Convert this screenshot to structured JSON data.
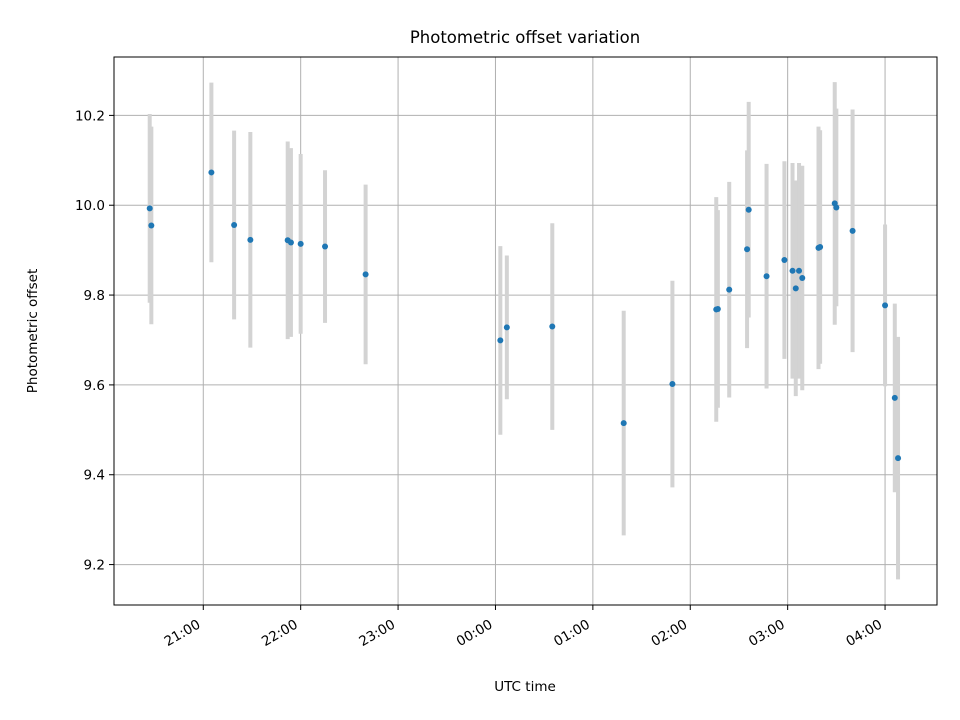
{
  "chart_data": {
    "type": "scatter",
    "title": "Photometric offset variation",
    "xlabel": "UTC time",
    "ylabel": "Photometric offset",
    "x_format": "HH:MM",
    "x_ticks": [
      "21:00",
      "22:00",
      "23:00",
      "00:00",
      "01:00",
      "02:00",
      "03:00",
      "04:00"
    ],
    "x_tick_dates": [
      "2000-01-01T21:00",
      "2000-01-01T22:00",
      "2000-01-01T23:00",
      "2000-01-02T00:00",
      "2000-01-02T01:00",
      "2000-01-02T02:00",
      "2000-01-02T03:00",
      "2000-01-02T04:00"
    ],
    "xlim": [
      "2000-01-01T20:05",
      "2000-01-02T04:32"
    ],
    "y_ticks": [
      "9.2",
      "9.4",
      "9.6",
      "9.8",
      "10.0",
      "10.2"
    ],
    "ylim": [
      9.11,
      10.33
    ],
    "grid": true,
    "marker_color": "#1f77b4",
    "errorbar_color": "#d3d3d3",
    "points": [
      {
        "t": "2000-01-01T20:27",
        "y": 9.993,
        "err": 0.21
      },
      {
        "t": "2000-01-01T20:28",
        "y": 9.955,
        "err": 0.22
      },
      {
        "t": "2000-01-01T21:05",
        "y": 10.073,
        "err": 0.2
      },
      {
        "t": "2000-01-01T21:19",
        "y": 9.956,
        "err": 0.21
      },
      {
        "t": "2000-01-01T21:29",
        "y": 9.923,
        "err": 0.24
      },
      {
        "t": "2000-01-01T21:52",
        "y": 9.922,
        "err": 0.22
      },
      {
        "t": "2000-01-01T21:54",
        "y": 9.917,
        "err": 0.21
      },
      {
        "t": "2000-01-01T22:00",
        "y": 9.914,
        "err": 0.2
      },
      {
        "t": "2000-01-01T22:15",
        "y": 9.908,
        "err": 0.17
      },
      {
        "t": "2000-01-01T22:40",
        "y": 9.846,
        "err": 0.2
      },
      {
        "t": "2000-01-02T00:03",
        "y": 9.699,
        "err": 0.21
      },
      {
        "t": "2000-01-02T00:07",
        "y": 9.728,
        "err": 0.16
      },
      {
        "t": "2000-01-02T00:35",
        "y": 9.73,
        "err": 0.23
      },
      {
        "t": "2000-01-02T01:19",
        "y": 9.515,
        "err": 0.25
      },
      {
        "t": "2000-01-02T01:49",
        "y": 9.602,
        "err": 0.23
      },
      {
        "t": "2000-01-02T02:16",
        "y": 9.768,
        "err": 0.25
      },
      {
        "t": "2000-01-02T02:17",
        "y": 9.769,
        "err": 0.22
      },
      {
        "t": "2000-01-02T02:24",
        "y": 9.812,
        "err": 0.24
      },
      {
        "t": "2000-01-02T02:35",
        "y": 9.902,
        "err": 0.22
      },
      {
        "t": "2000-01-02T02:36",
        "y": 9.99,
        "err": 0.24
      },
      {
        "t": "2000-01-02T02:47",
        "y": 9.842,
        "err": 0.25
      },
      {
        "t": "2000-01-02T02:58",
        "y": 9.878,
        "err": 0.22
      },
      {
        "t": "2000-01-02T03:03",
        "y": 9.854,
        "err": 0.24
      },
      {
        "t": "2000-01-02T03:05",
        "y": 9.815,
        "err": 0.24
      },
      {
        "t": "2000-01-02T03:07",
        "y": 9.854,
        "err": 0.24
      },
      {
        "t": "2000-01-02T03:09",
        "y": 9.838,
        "err": 0.25
      },
      {
        "t": "2000-01-02T03:19",
        "y": 9.905,
        "err": 0.27
      },
      {
        "t": "2000-01-02T03:20",
        "y": 9.907,
        "err": 0.26
      },
      {
        "t": "2000-01-02T03:29",
        "y": 10.004,
        "err": 0.27
      },
      {
        "t": "2000-01-02T03:30",
        "y": 9.995,
        "err": 0.22
      },
      {
        "t": "2000-01-02T03:40",
        "y": 9.943,
        "err": 0.27
      },
      {
        "t": "2000-01-02T04:00",
        "y": 9.777,
        "err": 0.18
      },
      {
        "t": "2000-01-02T04:06",
        "y": 9.571,
        "err": 0.21
      },
      {
        "t": "2000-01-02T04:08",
        "y": 9.437,
        "err": 0.27
      }
    ]
  }
}
